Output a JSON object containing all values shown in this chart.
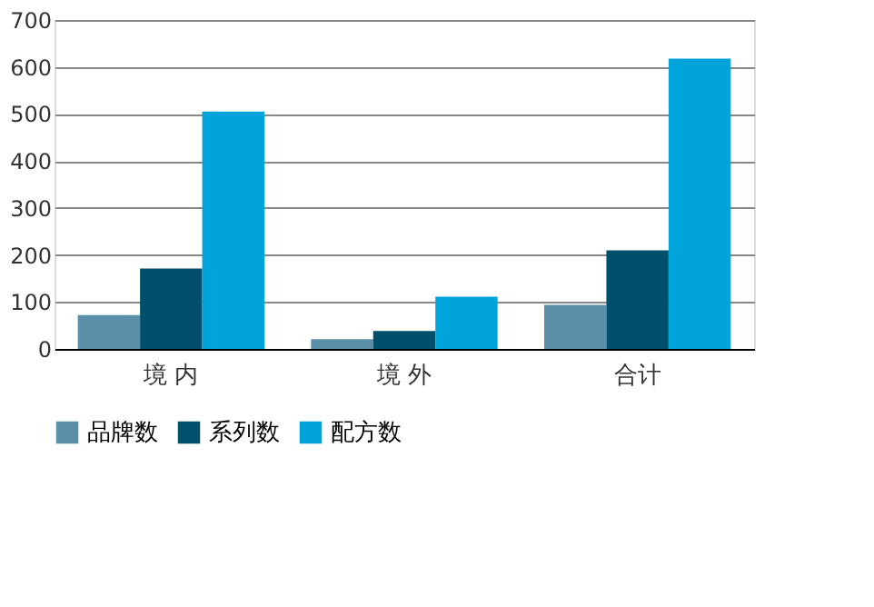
{
  "chart_data": {
    "type": "bar",
    "categories": [
      "境 内",
      "境 外",
      "合计"
    ],
    "series": [
      {
        "name": "品牌数",
        "color": "#5b8fa8",
        "values": [
          72,
          21,
          94
        ]
      },
      {
        "name": "系列数",
        "color": "#00506b",
        "values": [
          171,
          38,
          210
        ]
      },
      {
        "name": "配方数",
        "color": "#00a3da",
        "values": [
          505,
          111,
          618
        ]
      }
    ],
    "ylim": [
      0,
      700
    ],
    "yticks": [
      0,
      100,
      200,
      300,
      400,
      500,
      600,
      700
    ],
    "grid": "y",
    "legend": "bottom"
  }
}
